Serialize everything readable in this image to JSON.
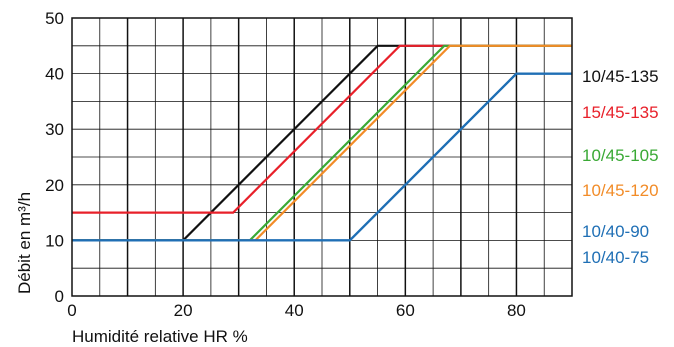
{
  "chart_data": {
    "type": "line",
    "title": "",
    "xlabel": "Humidité relative HR %",
    "ylabel": "Débit en m³/h",
    "xlim": [
      0,
      90
    ],
    "ylim": [
      0,
      50
    ],
    "x_ticks": [
      0,
      20,
      40,
      60,
      80
    ],
    "y_ticks": [
      0,
      10,
      20,
      30,
      40,
      50
    ],
    "grid": true,
    "legend_placement": "right",
    "series": [
      {
        "name": "10/45-135",
        "color": "#111111",
        "points": [
          [
            0,
            10
          ],
          [
            20,
            10
          ],
          [
            55,
            45
          ],
          [
            90,
            45
          ]
        ]
      },
      {
        "name": "15/45-135",
        "color": "#e8202a",
        "points": [
          [
            0,
            15
          ],
          [
            29,
            15
          ],
          [
            59,
            45
          ],
          [
            90,
            45
          ]
        ]
      },
      {
        "name": "10/45-105",
        "color": "#3aa935",
        "points": [
          [
            0,
            10
          ],
          [
            32,
            10
          ],
          [
            67,
            45
          ],
          [
            90,
            45
          ]
        ]
      },
      {
        "name": "10/45-120",
        "color": "#f28c28",
        "points": [
          [
            0,
            10
          ],
          [
            33,
            10
          ],
          [
            68,
            45
          ],
          [
            90,
            45
          ]
        ]
      },
      {
        "name": "10/40-90",
        "color": "#1f6fb5",
        "points": [
          [
            0,
            10
          ],
          [
            50,
            10
          ],
          [
            80,
            40
          ],
          [
            90,
            40
          ]
        ]
      },
      {
        "name": "10/40-75",
        "color": "#1f6fb5",
        "points": [
          [
            0,
            10
          ],
          [
            50,
            10
          ],
          [
            80,
            40
          ],
          [
            90,
            40
          ]
        ]
      }
    ]
  }
}
